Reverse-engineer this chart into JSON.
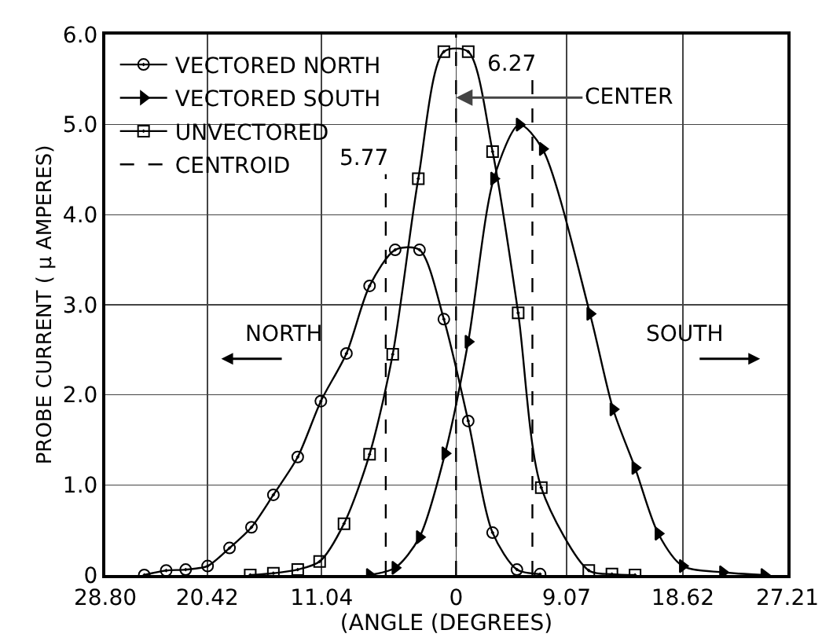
{
  "chart_data": {
    "type": "line",
    "xlabel": "(ANGLE (DEGREES)",
    "ylabel": "PROBE CURRENT ( μ AMPERES)",
    "xlim": [
      -28.8,
      27.21
    ],
    "xticks": [
      {
        "value": -28.8,
        "label": "28.80"
      },
      {
        "value": -20.42,
        "label": "20.42"
      },
      {
        "value": -11.04,
        "label": "11.04"
      },
      0,
      9.07,
      18.62,
      27.21
    ],
    "ylim": [
      0,
      6
    ],
    "yticks": [
      0,
      {
        "value": 1,
        "label": "1.0"
      },
      {
        "value": 2,
        "label": "2.0"
      },
      {
        "value": 3,
        "label": "3.0"
      },
      {
        "value": 4,
        "label": "4.0"
      },
      {
        "value": 5,
        "label": "5.0"
      },
      {
        "value": 6,
        "label": "6.0"
      }
    ],
    "grid": true,
    "legend": "top left",
    "series": [
      {
        "name": "VECTORED NORTH",
        "color": "#000000",
        "marker": "circle",
        "x": [
          -25.6,
          -23.8,
          -22.2,
          -20.4,
          -18.6,
          -16.8,
          -15.0,
          -13.0,
          -11.1,
          -9.0,
          -7.1,
          -5.0,
          -3.0,
          -1.0,
          1.0,
          3.0,
          5.0,
          6.9
        ],
        "values": [
          0.0,
          0.05,
          0.06,
          0.1,
          0.3,
          0.53,
          0.89,
          1.31,
          1.93,
          2.46,
          3.21,
          3.61,
          3.61,
          2.84,
          1.71,
          0.47,
          0.06,
          0.01
        ]
      },
      {
        "name": "VECTORED SOUTH",
        "color": "#000000",
        "marker": "triangle",
        "x": [
          -7.1,
          -5.0,
          -3.0,
          -0.9,
          1.0,
          3.1,
          5.2,
          7.1,
          11.0,
          12.9,
          14.7,
          16.6,
          18.6,
          21.9,
          25.3
        ],
        "values": [
          0.0,
          0.08,
          0.42,
          1.35,
          2.59,
          4.4,
          5.0,
          4.73,
          2.9,
          1.84,
          1.19,
          0.46,
          0.1,
          0.03,
          0.0
        ]
      },
      {
        "name": "UNVECTORED",
        "color": "#000000",
        "marker": "square",
        "x": [
          -16.9,
          -15.0,
          -13.0,
          -11.2,
          -9.2,
          -7.1,
          -5.2,
          -3.1,
          -1.0,
          1.0,
          3.0,
          5.1,
          7.0,
          10.9,
          12.8,
          14.7
        ],
        "values": [
          0.0,
          0.02,
          0.06,
          0.15,
          0.57,
          1.34,
          2.45,
          4.4,
          5.81,
          5.81,
          4.7,
          2.91,
          0.97,
          0.05,
          0.01,
          0.0
        ]
      },
      {
        "name": "CENTROID",
        "color": "#000000",
        "marker": "none",
        "line_style": "dashed",
        "x": [
          -5.77,
          -5.77,
          null,
          0,
          0,
          null,
          6.27,
          6.27
        ],
        "values": [
          0,
          4.45,
          null,
          0,
          6,
          null,
          0,
          5.5
        ]
      }
    ],
    "annotations": [
      {
        "text": "5.77",
        "x": -5.77,
        "y": 4.45
      },
      {
        "text": "6.27",
        "x": 6.27,
        "y": 5.5
      },
      {
        "text": "CENTER",
        "x": 0,
        "y": 5.3
      },
      "NORTH",
      "SOUTH"
    ]
  }
}
